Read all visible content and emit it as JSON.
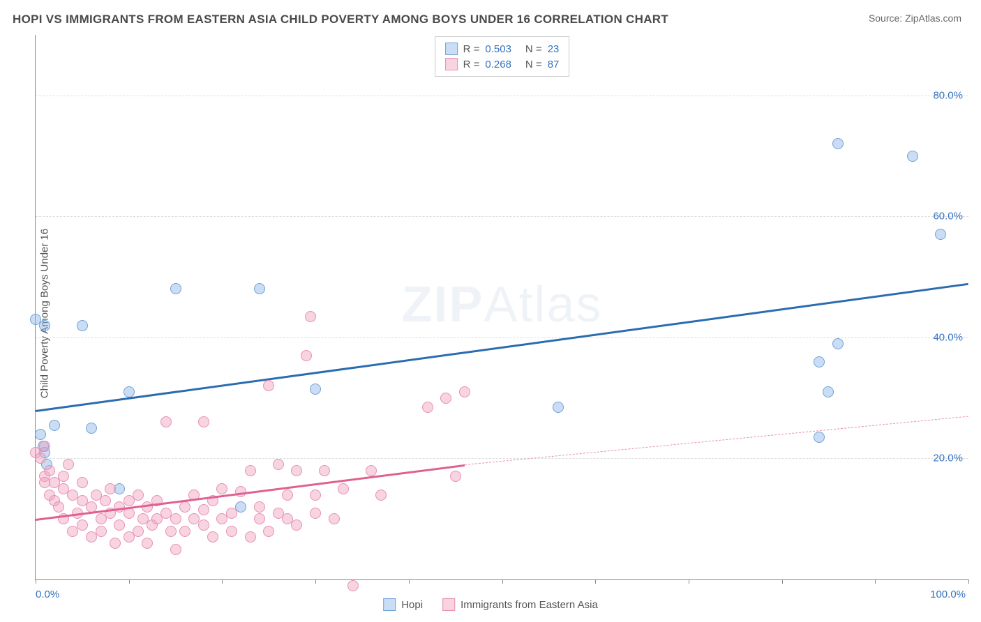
{
  "title": "HOPI VS IMMIGRANTS FROM EASTERN ASIA CHILD POVERTY AMONG BOYS UNDER 16 CORRELATION CHART",
  "source": "Source: ZipAtlas.com",
  "ylabel": "Child Poverty Among Boys Under 16",
  "watermark_bold": "ZIP",
  "watermark_rest": "Atlas",
  "chart": {
    "type": "scatter",
    "xlim": [
      0,
      100
    ],
    "ylim": [
      0,
      90
    ],
    "background_color": "#ffffff",
    "grid_color": "#dddddd",
    "ytick_step": 20,
    "ytick_labels": [
      "20.0%",
      "40.0%",
      "60.0%",
      "80.0%"
    ],
    "ytick_values": [
      20,
      40,
      60,
      80
    ],
    "xtick_values": [
      0,
      10,
      20,
      30,
      40,
      50,
      60,
      70,
      80,
      90,
      100
    ],
    "xlabel_start": "0.0%",
    "xlabel_end": "100.0%",
    "tick_label_color": "#3672be",
    "tick_label_fontsize": 15,
    "marker_radius": 8,
    "marker_border_width": 1.5,
    "series": [
      {
        "name": "Hopi",
        "label": "Hopi",
        "fill_color": "rgba(140,180,230,0.45)",
        "border_color": "#6fa2d8",
        "R": "0.503",
        "N": "23",
        "trend": {
          "x1": 0,
          "y1": 28,
          "x2": 100,
          "y2": 49,
          "color": "#2b6cb0",
          "width": 3,
          "dashed": false
        },
        "points": [
          [
            0,
            43
          ],
          [
            0.5,
            24
          ],
          [
            0.8,
            22
          ],
          [
            1,
            42
          ],
          [
            1,
            21
          ],
          [
            1.2,
            19
          ],
          [
            2,
            25.5
          ],
          [
            5,
            42
          ],
          [
            6,
            25
          ],
          [
            9,
            15
          ],
          [
            10,
            31
          ],
          [
            15,
            48
          ],
          [
            24,
            48
          ],
          [
            30,
            31.5
          ],
          [
            22,
            12
          ],
          [
            56,
            28.5
          ],
          [
            84,
            23.5
          ],
          [
            85,
            31
          ],
          [
            84,
            36
          ],
          [
            86,
            39
          ],
          [
            86,
            72
          ],
          [
            94,
            70
          ],
          [
            97,
            57
          ]
        ]
      },
      {
        "name": "Immigrants",
        "label": "Immigrants from Eastern Asia",
        "fill_color": "rgba(240,160,190,0.45)",
        "border_color": "#e890b0",
        "R": "0.268",
        "N": "87",
        "trend": {
          "x1": 0,
          "y1": 10,
          "x2": 46,
          "y2": 19,
          "color": "#e06090",
          "width": 3,
          "dashed": false
        },
        "trend_ext": {
          "x1": 46,
          "y1": 19,
          "x2": 100,
          "y2": 27,
          "color": "#e890b0",
          "width": 1.5,
          "dashed": true
        },
        "points": [
          [
            0,
            21
          ],
          [
            0.5,
            20
          ],
          [
            1,
            22
          ],
          [
            1,
            17
          ],
          [
            1,
            16
          ],
          [
            1.5,
            14
          ],
          [
            1.5,
            18
          ],
          [
            2,
            13
          ],
          [
            2,
            16
          ],
          [
            2.5,
            12
          ],
          [
            3,
            15
          ],
          [
            3,
            10
          ],
          [
            3,
            17
          ],
          [
            3.5,
            19
          ],
          [
            4,
            8
          ],
          [
            4,
            14
          ],
          [
            4.5,
            11
          ],
          [
            5,
            13
          ],
          [
            5,
            9
          ],
          [
            5,
            16
          ],
          [
            6,
            7
          ],
          [
            6,
            12
          ],
          [
            6.5,
            14
          ],
          [
            7,
            10
          ],
          [
            7,
            8
          ],
          [
            7.5,
            13
          ],
          [
            8,
            11
          ],
          [
            8,
            15
          ],
          [
            8.5,
            6
          ],
          [
            9,
            12
          ],
          [
            9,
            9
          ],
          [
            10,
            13
          ],
          [
            10,
            7
          ],
          [
            10,
            11
          ],
          [
            11,
            14
          ],
          [
            11,
            8
          ],
          [
            11.5,
            10
          ],
          [
            12,
            6
          ],
          [
            12,
            12
          ],
          [
            12.5,
            9
          ],
          [
            13,
            10
          ],
          [
            13,
            13
          ],
          [
            14,
            11
          ],
          [
            14,
            26
          ],
          [
            14.5,
            8
          ],
          [
            15,
            10
          ],
          [
            15,
            5
          ],
          [
            16,
            12
          ],
          [
            16,
            8
          ],
          [
            17,
            10
          ],
          [
            17,
            14
          ],
          [
            18,
            11.5
          ],
          [
            18,
            26
          ],
          [
            18,
            9
          ],
          [
            19,
            7
          ],
          [
            19,
            13
          ],
          [
            20,
            10
          ],
          [
            20,
            15
          ],
          [
            21,
            11
          ],
          [
            21,
            8
          ],
          [
            22,
            14.5
          ],
          [
            23,
            7
          ],
          [
            23,
            18
          ],
          [
            24,
            10
          ],
          [
            24,
            12
          ],
          [
            25,
            8
          ],
          [
            25,
            32
          ],
          [
            26,
            11
          ],
          [
            26,
            19
          ],
          [
            27,
            10
          ],
          [
            27,
            14
          ],
          [
            28,
            9
          ],
          [
            28,
            18
          ],
          [
            29,
            37
          ],
          [
            29.5,
            43.5
          ],
          [
            30,
            11
          ],
          [
            30,
            14
          ],
          [
            31,
            18
          ],
          [
            32,
            10
          ],
          [
            33,
            15
          ],
          [
            34,
            -1
          ],
          [
            36,
            18
          ],
          [
            37,
            14
          ],
          [
            42,
            28.5
          ],
          [
            44,
            30
          ],
          [
            46,
            31
          ],
          [
            45,
            17
          ]
        ]
      }
    ]
  },
  "legend_top": {
    "R_label": "R =",
    "N_label": "N ="
  },
  "legend_bottom": {
    "items": [
      "Hopi",
      "Immigrants from Eastern Asia"
    ]
  }
}
